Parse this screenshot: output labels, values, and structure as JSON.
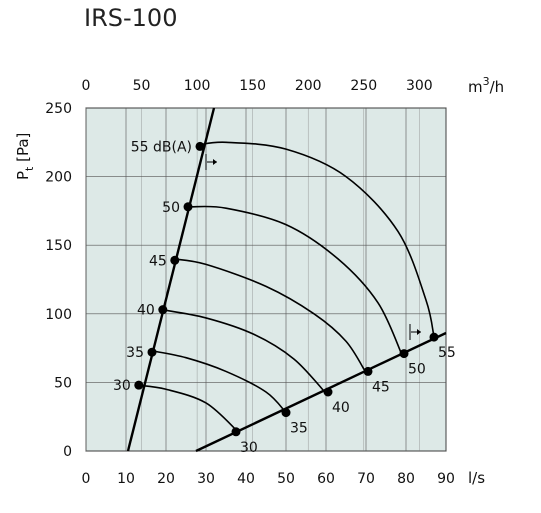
{
  "chart_data": {
    "type": "line",
    "title": "IRS-100",
    "ylabel": "P_t [Pa]",
    "xlabel_bottom": "l/s",
    "xlabel_top": "m3/h",
    "xlim_bottom": [
      0,
      90
    ],
    "xlim_top": [
      0,
      324
    ],
    "ylim": [
      0,
      250
    ],
    "xticks_bottom": [
      0,
      10,
      20,
      30,
      40,
      50,
      60,
      70,
      80,
      90
    ],
    "xticks_top": [
      0,
      50,
      100,
      150,
      200,
      250,
      300
    ],
    "yticks": [
      0,
      50,
      100,
      150,
      200,
      250
    ],
    "grid": true,
    "bg_color": "#dde9e7",
    "curves": [
      {
        "name": "55",
        "points": [
          [
            28,
            223
          ],
          [
            35,
            225
          ],
          [
            50,
            220
          ],
          [
            65,
            200
          ],
          [
            78,
            160
          ],
          [
            85,
            110
          ],
          [
            87,
            83
          ]
        ]
      },
      {
        "name": "50",
        "points": [
          [
            26,
            178
          ],
          [
            35,
            177
          ],
          [
            50,
            165
          ],
          [
            63,
            140
          ],
          [
            73,
            108
          ],
          [
            79,
            70
          ]
        ]
      },
      {
        "name": "45",
        "points": [
          [
            22,
            140
          ],
          [
            30,
            136
          ],
          [
            45,
            120
          ],
          [
            57,
            100
          ],
          [
            65,
            80
          ],
          [
            70,
            57
          ]
        ]
      },
      {
        "name": "40",
        "points": [
          [
            19,
            103
          ],
          [
            30,
            97
          ],
          [
            42,
            85
          ],
          [
            52,
            67
          ],
          [
            60,
            42
          ]
        ]
      },
      {
        "name": "35",
        "points": [
          [
            16.5,
            73
          ],
          [
            25,
            68
          ],
          [
            35,
            58
          ],
          [
            45,
            43
          ],
          [
            50,
            28
          ]
        ]
      },
      {
        "name": "30",
        "points": [
          [
            13,
            48
          ],
          [
            20,
            45
          ],
          [
            30,
            35
          ],
          [
            38,
            14
          ]
        ]
      }
    ],
    "points": [
      {
        "label": "55 dB(A)",
        "x": 28.5,
        "y": 222
      },
      {
        "label": "50",
        "x": 25.5,
        "y": 178
      },
      {
        "label": "45",
        "x": 22.2,
        "y": 139
      },
      {
        "label": "40",
        "x": 19.2,
        "y": 103
      },
      {
        "label": "35",
        "x": 16.5,
        "y": 72
      },
      {
        "label": "30",
        "x": 13.2,
        "y": 48
      },
      {
        "label": "55",
        "x": 87,
        "y": 83
      },
      {
        "label": "50",
        "x": 79.5,
        "y": 71
      },
      {
        "label": "45",
        "x": 70.5,
        "y": 58
      },
      {
        "label": "40",
        "x": 60.5,
        "y": 43
      },
      {
        "label": "35",
        "x": 50,
        "y": 28
      },
      {
        "label": "30",
        "x": 37.5,
        "y": 14
      }
    ],
    "left_line": [
      [
        10.5,
        0
      ],
      [
        32,
        250
      ]
    ],
    "right_line": [
      [
        27.5,
        0
      ],
      [
        90,
        86
      ]
    ]
  }
}
